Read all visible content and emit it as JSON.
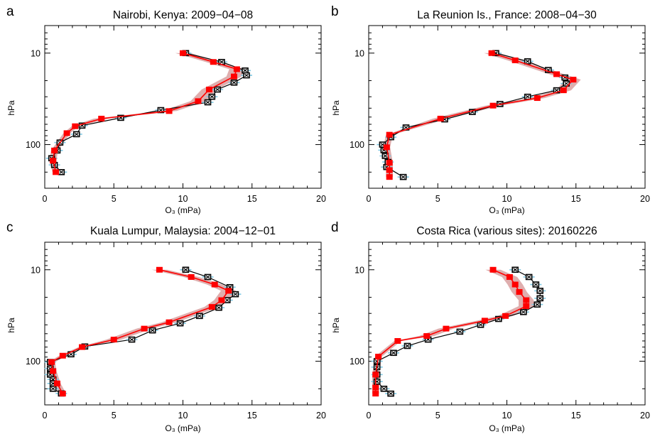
{
  "figure": {
    "colors": {
      "model": "#ff0000",
      "model_band": "#d9a0a0",
      "obs": "#000000",
      "obs_error": "#7ec8e3"
    },
    "marker_icons": {
      "model": "filled-square",
      "obs": "cross-in-square"
    }
  },
  "chart_data": [
    {
      "panel_letter": "a",
      "type": "line",
      "title": "Nairobi, Kenya: 2009−04−08",
      "xlabel": "O₃ (mPa)",
      "ylabel": "hPa",
      "xlim": [
        0,
        20
      ],
      "xticks": [
        "0",
        "5",
        "10",
        "15",
        "20"
      ],
      "ylim": [
        300,
        5
      ],
      "yscale": "log",
      "yticks": [
        "10",
        "100"
      ],
      "series": [
        {
          "role": "obs",
          "points": [
            [
              10.2,
              10
            ],
            [
              12.8,
              12.5
            ],
            [
              14.5,
              15.5
            ],
            [
              14.6,
              17.5
            ],
            [
              13.7,
              21
            ],
            [
              12.5,
              25
            ],
            [
              12.1,
              30
            ],
            [
              11.8,
              34.5
            ],
            [
              8.4,
              42
            ],
            [
              5.5,
              51
            ],
            [
              2.7,
              62
            ],
            [
              2.3,
              77
            ],
            [
              1.1,
              95
            ],
            [
              0.9,
              116
            ],
            [
              0.5,
              141
            ],
            [
              0.7,
              167
            ],
            [
              1.2,
              200
            ]
          ]
        },
        {
          "role": "model",
          "points": [
            [
              10.0,
              10
            ],
            [
              12.2,
              12.5
            ],
            [
              13.9,
              15
            ],
            [
              13.7,
              18
            ],
            [
              11.9,
              25
            ],
            [
              11.1,
              33.5
            ],
            [
              9.0,
              43
            ],
            [
              4.1,
              52
            ],
            [
              2.2,
              63
            ],
            [
              1.6,
              75
            ],
            [
              0.7,
              116
            ],
            [
              0.6,
              150
            ],
            [
              0.8,
              200
            ]
          ]
        }
      ]
    },
    {
      "panel_letter": "b",
      "type": "line",
      "title": "La Reunion Is., France: 2008−04−30",
      "xlabel": "O₃ (mPa)",
      "ylabel": "hPa",
      "xlim": [
        0,
        20
      ],
      "xticks": [
        "0",
        "5",
        "10",
        "15",
        "20"
      ],
      "ylim": [
        300,
        5
      ],
      "yscale": "log",
      "yticks": [
        "10",
        "100"
      ],
      "series": [
        {
          "role": "obs",
          "points": [
            [
              9.2,
              10
            ],
            [
              11.5,
              12.3
            ],
            [
              13.0,
              15.3
            ],
            [
              14.2,
              18.5
            ],
            [
              14.3,
              21.5
            ],
            [
              13.6,
              25.5
            ],
            [
              11.5,
              30
            ],
            [
              9.5,
              36
            ],
            [
              7.5,
              44
            ],
            [
              5.5,
              53
            ],
            [
              2.7,
              65
            ],
            [
              1.6,
              83
            ],
            [
              1.0,
              100
            ],
            [
              1.1,
              115
            ],
            [
              1.2,
              133
            ],
            [
              1.4,
              155
            ],
            [
              1.3,
              176
            ],
            [
              2.5,
              226
            ]
          ]
        },
        {
          "role": "model",
          "points": [
            [
              8.9,
              10
            ],
            [
              10.6,
              12
            ],
            [
              13.6,
              17
            ],
            [
              14.8,
              19.5
            ],
            [
              14.1,
              25.5
            ],
            [
              12.2,
              31
            ],
            [
              9.0,
              37.5
            ],
            [
              5.2,
              52
            ],
            [
              1.5,
              78
            ],
            [
              1.3,
              107
            ],
            [
              1.5,
              158
            ],
            [
              1.5,
              190
            ],
            [
              1.5,
              226
            ]
          ]
        }
      ]
    },
    {
      "panel_letter": "c",
      "type": "line",
      "title": "Kuala Lumpur, Malaysia: 2004−12−01",
      "xlabel": "O₃ (mPa)",
      "ylabel": "hPa",
      "xlim": [
        0,
        20
      ],
      "xticks": [
        "0",
        "5",
        "10",
        "15",
        "20"
      ],
      "ylim": [
        300,
        5
      ],
      "yscale": "log",
      "yticks": [
        "10",
        "100"
      ],
      "series": [
        {
          "role": "obs",
          "points": [
            [
              10.2,
              10
            ],
            [
              11.8,
              12
            ],
            [
              13.4,
              15.5
            ],
            [
              13.8,
              18.5
            ],
            [
              13.2,
              21.5
            ],
            [
              12.6,
              26
            ],
            [
              11.2,
              32
            ],
            [
              9.8,
              38.5
            ],
            [
              7.8,
              46
            ],
            [
              6.3,
              58
            ],
            [
              2.9,
              69
            ],
            [
              1.9,
              84
            ],
            [
              0.4,
              102
            ],
            [
              0.4,
              120
            ],
            [
              0.4,
              140
            ],
            [
              0.6,
              158
            ],
            [
              0.6,
              175
            ],
            [
              0.6,
              200
            ],
            [
              1.2,
              225
            ]
          ]
        },
        {
          "role": "model",
          "points": [
            [
              8.3,
              10
            ],
            [
              10.6,
              12
            ],
            [
              12.3,
              14.5
            ],
            [
              13.3,
              17
            ],
            [
              12.8,
              21.5
            ],
            [
              12.1,
              25.5
            ],
            [
              9.0,
              37.5
            ],
            [
              7.2,
              44
            ],
            [
              5.0,
              58
            ],
            [
              2.7,
              70
            ],
            [
              1.3,
              87
            ],
            [
              0.5,
              102
            ],
            [
              0.6,
              128
            ],
            [
              0.9,
              175
            ],
            [
              1.3,
              226
            ]
          ]
        }
      ]
    },
    {
      "panel_letter": "d",
      "type": "line",
      "title": "Costa Rica (various sites): 20160226",
      "xlabel": "O₃ (mPa)",
      "ylabel": "hPa",
      "xlim": [
        0,
        20
      ],
      "xticks": [
        "0",
        "5",
        "10",
        "15",
        "20"
      ],
      "ylim": [
        300,
        5
      ],
      "yscale": "log",
      "yticks": [
        "10",
        "100"
      ],
      "series": [
        {
          "role": "obs",
          "points": [
            [
              10.6,
              10
            ],
            [
              11.6,
              12
            ],
            [
              12.1,
              14.5
            ],
            [
              12.4,
              17
            ],
            [
              12.4,
              20.5
            ],
            [
              12.2,
              24
            ],
            [
              11.2,
              29
            ],
            [
              9.4,
              34.5
            ],
            [
              8.1,
              40
            ],
            [
              6.6,
              47.5
            ],
            [
              4.3,
              58
            ],
            [
              2.8,
              68
            ],
            [
              1.8,
              81
            ],
            [
              0.6,
              100
            ],
            [
              0.6,
              116
            ],
            [
              0.6,
              140
            ],
            [
              0.6,
              167
            ],
            [
              1.1,
              200
            ],
            [
              1.6,
              226
            ]
          ]
        },
        {
          "role": "model",
          "points": [
            [
              9.0,
              10
            ],
            [
              10.2,
              12
            ],
            [
              10.6,
              14.5
            ],
            [
              10.9,
              17.5
            ],
            [
              11.4,
              21.5
            ],
            [
              11.4,
              25
            ],
            [
              9.9,
              32
            ],
            [
              8.4,
              36
            ],
            [
              5.6,
              44
            ],
            [
              4.2,
              53
            ],
            [
              2.1,
              60
            ],
            [
              0.7,
              89
            ],
            [
              0.5,
              140
            ],
            [
              0.5,
              194
            ],
            [
              0.5,
              226
            ]
          ]
        }
      ]
    }
  ]
}
